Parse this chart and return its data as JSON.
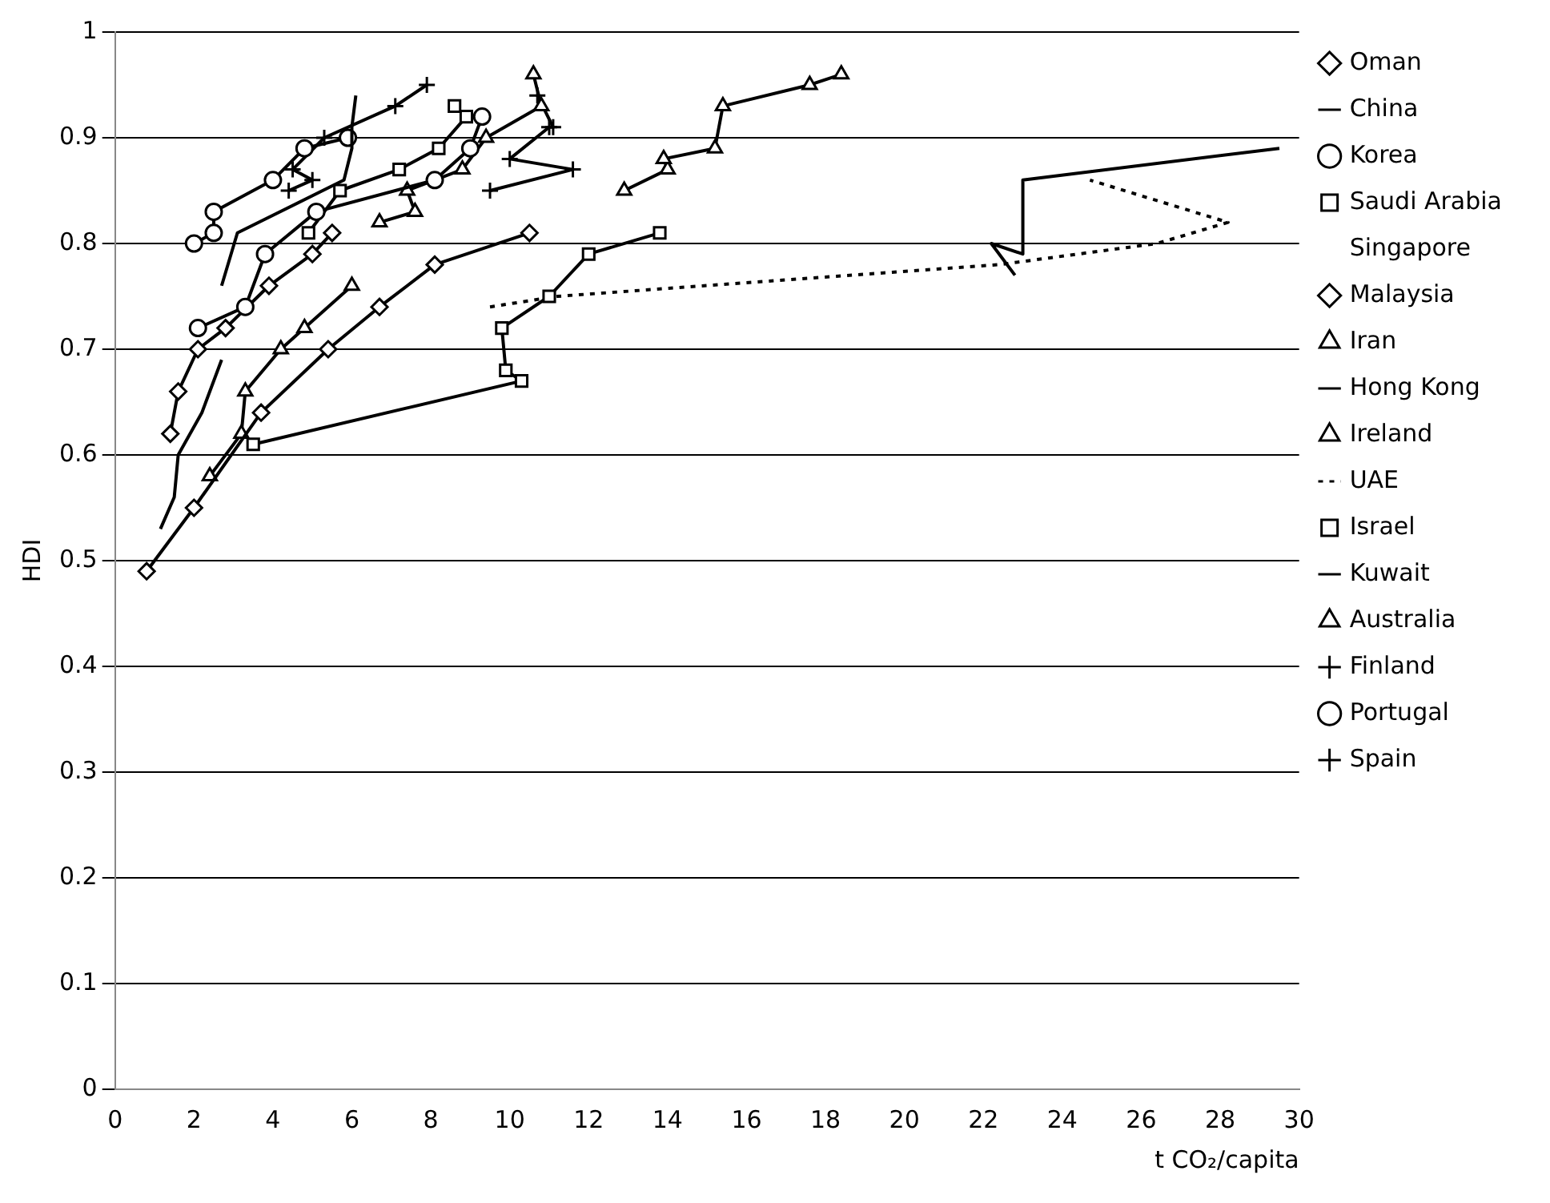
{
  "chart_data": {
    "type": "line",
    "xlabel": "t CO₂/capita",
    "ylabel": "HDI",
    "xlim": [
      0,
      30
    ],
    "xticks": [
      0,
      2,
      4,
      6,
      8,
      10,
      12,
      14,
      16,
      18,
      20,
      22,
      24,
      26,
      28,
      30
    ],
    "ylim": [
      0,
      1
    ],
    "yticks": [
      0,
      0.1,
      0.2,
      0.3,
      0.4,
      0.5,
      0.6,
      0.7,
      0.8,
      0.9,
      1
    ],
    "grid": "y",
    "legend": "right",
    "series": [
      {
        "name": "Oman",
        "color": "#000000",
        "marker": "diamond",
        "line_style": "solid",
        "x": [
          0.8,
          2,
          3.7,
          5.4,
          6.7,
          8.1,
          10.5
        ],
        "values": [
          0.49,
          0.55,
          0.64,
          0.7,
          0.74,
          0.78,
          0.81
        ]
      },
      {
        "name": "China",
        "color": "#000000",
        "marker": "none",
        "line_style": "solid",
        "x": [
          1.15,
          1.5,
          1.6,
          2.2,
          2.7
        ],
        "values": [
          0.53,
          0.56,
          0.6,
          0.64,
          0.69
        ]
      },
      {
        "name": "Korea",
        "color": "#000000",
        "marker": "circle",
        "line_style": "solid",
        "x": [
          2.1,
          3.3,
          3.8,
          5.1,
          8.1,
          9,
          9.3
        ],
        "values": [
          0.72,
          0.74,
          0.79,
          0.83,
          0.86,
          0.89,
          0.92
        ]
      },
      {
        "name": "Saudi Arabia",
        "color": "#000000",
        "marker": "square",
        "line_style": "solid",
        "x": [
          3.5,
          10.3,
          9.9,
          9.8,
          11,
          12,
          13.8
        ],
        "values": [
          0.61,
          0.67,
          0.68,
          0.72,
          0.75,
          0.79,
          0.81
        ]
      },
      {
        "name": "Singapore",
        "marker": "none"
      },
      {
        "name": "Malaysia",
        "color": "#000000",
        "marker": "diamond",
        "line_style": "solid",
        "x": [
          1.4,
          1.6,
          2.1,
          2.8,
          3.9,
          5,
          5.5
        ],
        "values": [
          0.62,
          0.66,
          0.7,
          0.72,
          0.76,
          0.79,
          0.81
        ]
      },
      {
        "name": "Iran",
        "color": "#000000",
        "marker": "triangle",
        "line_style": "solid",
        "x": [
          2.4,
          3.2,
          3.3,
          4.2,
          4.8,
          6
        ],
        "values": [
          0.58,
          0.62,
          0.66,
          0.7,
          0.72,
          0.76
        ]
      },
      {
        "name": "Hong Kong",
        "color": "#000000",
        "marker": "none",
        "line_style": "solid",
        "x": [
          2.7,
          3.1,
          5.8,
          6,
          6,
          6.1
        ],
        "values": [
          0.76,
          0.81,
          0.86,
          0.89,
          0.91,
          0.94
        ]
      },
      {
        "name": "Ireland",
        "color": "#000000",
        "marker": "triangle",
        "line_style": "solid",
        "x": [
          6.7,
          7.6,
          7.4,
          8.8,
          9.4,
          10.8,
          10.6
        ],
        "values": [
          0.82,
          0.83,
          0.85,
          0.87,
          0.9,
          0.93,
          0.96
        ]
      },
      {
        "name": "UAE",
        "color": "#000000",
        "marker": "none",
        "line_style": "dotted",
        "x": [
          9.5,
          11.2,
          22.4,
          26.4,
          28.2,
          24.7
        ],
        "values": [
          0.74,
          0.75,
          0.78,
          0.8,
          0.82,
          0.86
        ]
      },
      {
        "name": "Israel",
        "color": "#000000",
        "marker": "square",
        "line_style": "solid",
        "x": [
          4.9,
          5.7,
          7.2,
          8.2,
          8.9,
          8.6
        ],
        "values": [
          0.81,
          0.85,
          0.87,
          0.89,
          0.92,
          0.93
        ]
      },
      {
        "name": "Kuwait",
        "color": "#000000",
        "marker": "none",
        "line_style": "solid",
        "x": [
          22.8,
          22.2,
          23,
          23,
          29.5
        ],
        "values": [
          0.77,
          0.8,
          0.79,
          0.86,
          0.89
        ]
      },
      {
        "name": "Australia",
        "color": "#000000",
        "marker": "triangle",
        "line_style": "solid",
        "x": [
          12.9,
          14,
          13.9,
          15.2,
          15.4,
          17.6,
          18.4
        ],
        "values": [
          0.85,
          0.87,
          0.88,
          0.89,
          0.93,
          0.95,
          0.96
        ]
      },
      {
        "name": "Finland",
        "color": "#000000",
        "marker": "cross",
        "line_style": "solid",
        "x": [
          9.5,
          11.6,
          10,
          11,
          11.1,
          10.7
        ],
        "values": [
          0.85,
          0.87,
          0.88,
          0.91,
          0.91,
          0.94
        ]
      },
      {
        "name": "Portugal",
        "color": "#000000",
        "marker": "circle",
        "line_style": "solid",
        "x": [
          2,
          2.5,
          2.5,
          4,
          4.8,
          5.9
        ],
        "values": [
          0.8,
          0.81,
          0.83,
          0.86,
          0.89,
          0.9
        ]
      },
      {
        "name": "Spain",
        "color": "#000000",
        "marker": "cross",
        "line_style": "solid",
        "x": [
          4.4,
          5,
          4.5,
          5.3,
          7.1,
          7.9
        ],
        "values": [
          0.85,
          0.86,
          0.87,
          0.9,
          0.93,
          0.95
        ]
      }
    ]
  }
}
